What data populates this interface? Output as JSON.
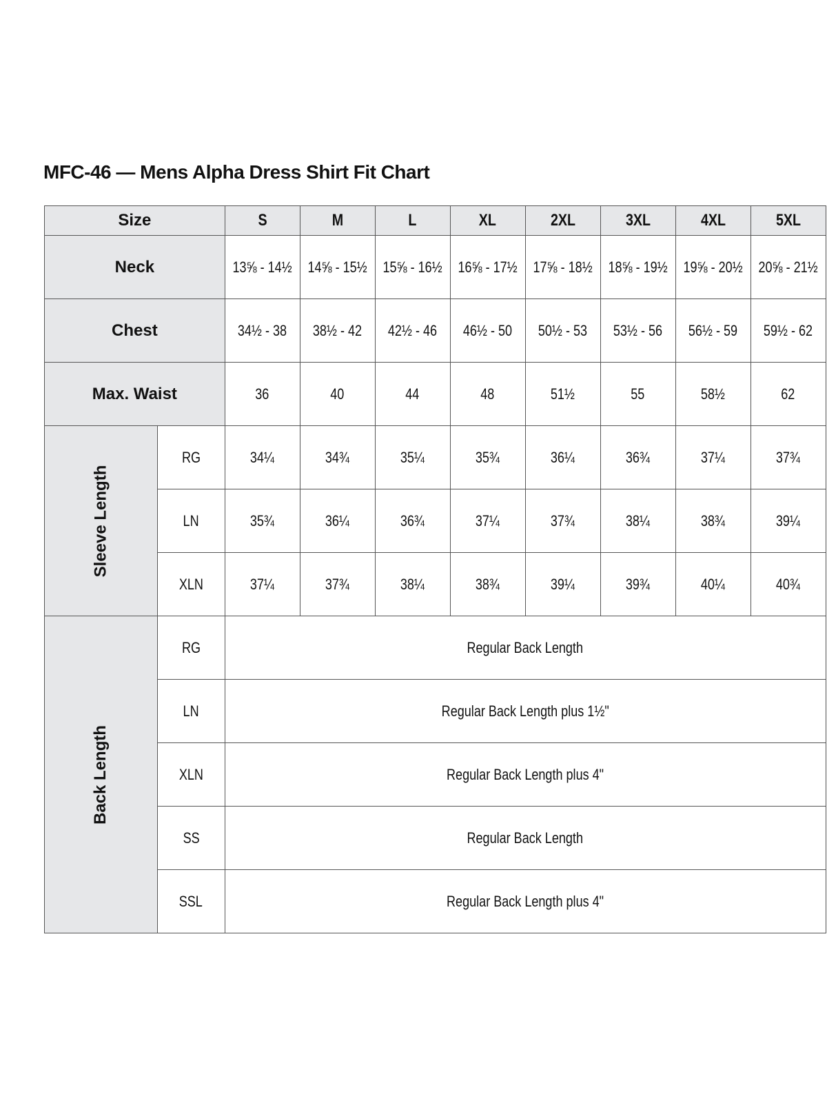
{
  "title": "MFC-46 — Mens Alpha Dress Shirt Fit Chart",
  "header": {
    "label": "Size",
    "sizes": [
      "S",
      "M",
      "L",
      "XL",
      "2XL",
      "3XL",
      "4XL",
      "5XL"
    ]
  },
  "rows": {
    "neck": {
      "label": "Neck",
      "values": [
        "13⅝ - 14½",
        "14⅝ - 15½",
        "15⅝ - 16½",
        "16⅝ - 17½",
        "17⅝ - 18½",
        "18⅝ - 19½",
        "19⅝ - 20½",
        "20⅝ - 21½"
      ]
    },
    "chest": {
      "label": "Chest",
      "values": [
        "34½ - 38",
        "38½ - 42",
        "42½ - 46",
        "46½ - 50",
        "50½ - 53",
        "53½ - 56",
        "56½ - 59",
        "59½ - 62"
      ]
    },
    "waist": {
      "label": "Max. Waist",
      "values": [
        "36",
        "40",
        "44",
        "48",
        "51½",
        "55",
        "58½",
        "62"
      ]
    }
  },
  "sleeve": {
    "label": "Sleeve Length",
    "rows": [
      {
        "label": "RG",
        "values": [
          "34¼",
          "34¾",
          "35¼",
          "35¾",
          "36¼",
          "36¾",
          "37¼",
          "37¾"
        ]
      },
      {
        "label": "LN",
        "values": [
          "35¾",
          "36¼",
          "36¾",
          "37¼",
          "37¾",
          "38¼",
          "38¾",
          "39¼"
        ]
      },
      {
        "label": "XLN",
        "values": [
          "37¼",
          "37¾",
          "38¼",
          "38¾",
          "39¼",
          "39¾",
          "40¼",
          "40¾"
        ]
      }
    ]
  },
  "back": {
    "label": "Back Length",
    "rows": [
      {
        "label": "RG",
        "value": "Regular Back Length"
      },
      {
        "label": "LN",
        "value": "Regular Back Length plus 1½\""
      },
      {
        "label": "XLN",
        "value": "Regular Back Length plus 4\""
      },
      {
        "label": "SS",
        "value": "Regular Back Length"
      },
      {
        "label": "SSL",
        "value": "Regular Back Length plus 4\""
      }
    ]
  }
}
